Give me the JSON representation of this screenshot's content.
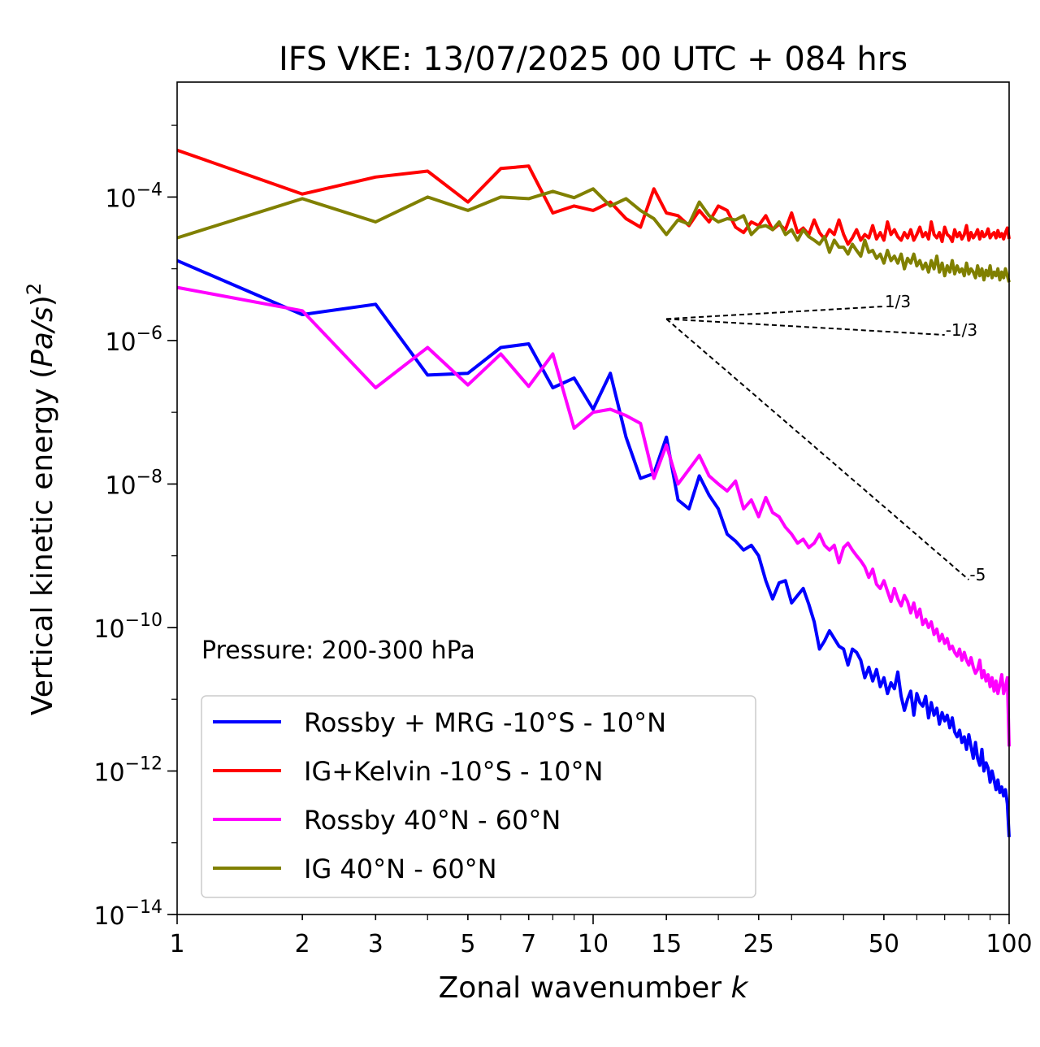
{
  "chart_data": {
    "type": "line",
    "title": "IFS VKE: 13/07/2025 00 UTC + 084 hrs",
    "xlabel": "Zonal wavenumber",
    "xlabel_var": "k",
    "ylabel_prefix": "Vertical kinetic energy (",
    "ylabel_var": "Pa/s",
    "ylabel_suffix": ")",
    "ylabel_exp": "2",
    "x_scale": "log",
    "y_scale": "log",
    "xlim": [
      1,
      100
    ],
    "ylim": [
      1e-14,
      0.004
    ],
    "x_ticks": [
      1,
      2,
      3,
      5,
      7,
      10,
      15,
      25,
      50,
      100
    ],
    "x_tick_labels": [
      "1",
      "2",
      "3",
      "5",
      "7",
      "10",
      "15",
      "25",
      "50",
      "100"
    ],
    "y_ticks": [
      0.0001,
      1e-06,
      1e-08,
      1e-10,
      1e-12,
      1e-14
    ],
    "y_tick_labels": [
      {
        "base": "10",
        "exp": "−4"
      },
      {
        "base": "10",
        "exp": "−6"
      },
      {
        "base": "10",
        "exp": "−8"
      },
      {
        "base": "10",
        "exp": "−10"
      },
      {
        "base": "10",
        "exp": "−12"
      },
      {
        "base": "10",
        "exp": "−14"
      }
    ],
    "annotation": "Pressure: 200-300 hPa",
    "legend_position": "lower-left",
    "grid": false,
    "reference_slopes": [
      {
        "label": "1/3",
        "slope": 0.3333,
        "x_start": 15,
        "x_end": 50,
        "y_start": 2e-06
      },
      {
        "label": "-1/3",
        "slope": -0.3333,
        "x_start": 15,
        "x_end": 70,
        "y_start": 2e-06
      },
      {
        "label": "-5",
        "slope": -5,
        "x_start": 15,
        "x_end": 80,
        "y_start": 2e-06
      }
    ],
    "series": [
      {
        "name": "Rossby + MRG -10°S - 10°N",
        "color": "#0000ff",
        "x": [
          1,
          2,
          3,
          4,
          5,
          6,
          7,
          8,
          9,
          10,
          11,
          12,
          13,
          14,
          15,
          16,
          17,
          18,
          19,
          20,
          21,
          22,
          23,
          24,
          25,
          26,
          27,
          28,
          29,
          30,
          31,
          32,
          33,
          34,
          35,
          36,
          37,
          38,
          39,
          40,
          41,
          42,
          43,
          44,
          45,
          46,
          47,
          48,
          49,
          50,
          51,
          52,
          53,
          54,
          55,
          56,
          57,
          58,
          59,
          60,
          61,
          62,
          63,
          64,
          65,
          66,
          67,
          68,
          69,
          70,
          71,
          72,
          73,
          74,
          75,
          76,
          77,
          78,
          79,
          80,
          81,
          82,
          83,
          84,
          85,
          86,
          87,
          88,
          89,
          90,
          91,
          92,
          93,
          94,
          95,
          96,
          97,
          98,
          99,
          100
        ],
        "y": [
          1.3e-05,
          2.3e-06,
          3.2e-06,
          3.3e-07,
          3.5e-07,
          8e-07,
          9e-07,
          2.2e-07,
          3e-07,
          1.1e-07,
          3.5e-07,
          4.5e-08,
          1.2e-08,
          1.4e-08,
          4.5e-08,
          6e-09,
          4.5e-09,
          1.3e-08,
          7e-09,
          4.5e-09,
          2e-09,
          1.6e-09,
          1.2e-09,
          1.4e-09,
          1e-09,
          4.5e-10,
          2.5e-10,
          4.2e-10,
          4.5e-10,
          2.2e-10,
          2.8e-10,
          3.5e-10,
          2.1e-10,
          1.2e-10,
          5e-11,
          6.5e-11,
          9e-11,
          7e-11,
          5.5e-11,
          5e-11,
          3e-11,
          5e-11,
          4.5e-11,
          3.5e-11,
          2e-11,
          2.8e-11,
          1.8e-11,
          2.6e-11,
          1.5e-11,
          2e-11,
          1.2e-11,
          1.7e-11,
          1.4e-11,
          2.4e-11,
          1.1e-11,
          7e-12,
          1e-11,
          1.3e-11,
          6e-12,
          1.2e-11,
          9e-12,
          8e-12,
          1.1e-11,
          5.5e-12,
          9e-12,
          6e-12,
          7.5e-12,
          4.5e-12,
          6.5e-12,
          5e-12,
          6e-12,
          4e-12,
          5.5e-12,
          3.5e-12,
          3e-12,
          3.7e-12,
          2.5e-12,
          3e-12,
          2e-12,
          3.2e-12,
          2.2e-12,
          1.5e-12,
          2.5e-12,
          1.5e-12,
          1.2e-12,
          2e-12,
          1e-12,
          1.3e-12,
          1.1e-12,
          7e-13,
          1e-12,
          7.5e-13,
          5.5e-13,
          7.5e-13,
          5e-13,
          6e-13,
          4.5e-13,
          5.5e-13,
          3.5e-13,
          1.2e-13
        ]
      },
      {
        "name": "IG+Kelvin -10°S - 10°N",
        "color": "#ff0000",
        "x": [
          1,
          2,
          3,
          4,
          5,
          6,
          7,
          8,
          9,
          10,
          11,
          12,
          13,
          14,
          15,
          16,
          17,
          18,
          19,
          20,
          21,
          22,
          23,
          24,
          25,
          26,
          27,
          28,
          29,
          30,
          31,
          32,
          33,
          34,
          35,
          36,
          37,
          38,
          39,
          40,
          41,
          42,
          43,
          44,
          45,
          46,
          47,
          48,
          49,
          50,
          51,
          52,
          53,
          54,
          55,
          56,
          57,
          58,
          59,
          60,
          61,
          62,
          63,
          64,
          65,
          66,
          67,
          68,
          69,
          70,
          71,
          72,
          73,
          74,
          75,
          76,
          77,
          78,
          79,
          80,
          81,
          82,
          83,
          84,
          85,
          86,
          87,
          88,
          89,
          90,
          91,
          92,
          93,
          94,
          95,
          96,
          97,
          98,
          99,
          100
        ],
        "y": [
          0.00045,
          0.00011,
          0.00019,
          0.00023,
          8.5e-05,
          0.00025,
          0.00027,
          6e-05,
          7.5e-05,
          6.5e-05,
          8.5e-05,
          5e-05,
          3.8e-05,
          0.00013,
          6e-05,
          5.5e-05,
          4e-05,
          6.5e-05,
          4.5e-05,
          7.5e-05,
          6.5e-05,
          3.8e-05,
          3.2e-05,
          4.5e-05,
          4e-05,
          5.5e-05,
          3.5e-05,
          4.2e-05,
          3.5e-05,
          6e-05,
          3.2e-05,
          3.7e-05,
          3e-05,
          4.8e-05,
          3.2e-05,
          2.6e-05,
          3.5e-05,
          3e-05,
          4.8e-05,
          3e-05,
          2.2e-05,
          2.7e-05,
          3.5e-05,
          2.5e-05,
          3e-05,
          2.7e-05,
          4e-05,
          2.6e-05,
          3.2e-05,
          2.5e-05,
          4.5e-05,
          3e-05,
          3.5e-05,
          2.8e-05,
          2.5e-05,
          3.2e-05,
          2.7e-05,
          3.5e-05,
          2.5e-05,
          3e-05,
          3.8e-05,
          2.8e-05,
          3.2e-05,
          2.6e-05,
          4.5e-05,
          3e-05,
          2.7e-05,
          3.2e-05,
          2.4e-05,
          3.8e-05,
          3e-05,
          2.8e-05,
          2.4e-05,
          3.5e-05,
          2.8e-05,
          3.2e-05,
          2.6e-05,
          3e-05,
          4e-05,
          2.5e-05,
          3.2e-05,
          2.7e-05,
          3e-05,
          3.5e-05,
          2.6e-05,
          3.3e-05,
          2.8e-05,
          3e-05,
          3.6e-05,
          2.7e-05,
          3e-05,
          3.2e-05,
          2.7e-05,
          3.4e-05,
          2.8e-05,
          3.1e-05,
          2.6e-05,
          3.2e-05,
          3.7e-05,
          2.6e-05
        ]
      },
      {
        "name": "Rossby 40°N - 60°N",
        "color": "#ff00ff",
        "x": [
          1,
          2,
          3,
          4,
          5,
          6,
          7,
          8,
          9,
          10,
          11,
          12,
          13,
          14,
          15,
          16,
          17,
          18,
          19,
          20,
          21,
          22,
          23,
          24,
          25,
          26,
          27,
          28,
          29,
          30,
          31,
          32,
          33,
          34,
          35,
          36,
          37,
          38,
          39,
          40,
          41,
          42,
          43,
          44,
          45,
          46,
          47,
          48,
          49,
          50,
          51,
          52,
          53,
          54,
          55,
          56,
          57,
          58,
          59,
          60,
          61,
          62,
          63,
          64,
          65,
          66,
          67,
          68,
          69,
          70,
          71,
          72,
          73,
          74,
          75,
          76,
          77,
          78,
          79,
          80,
          81,
          82,
          83,
          84,
          85,
          86,
          87,
          88,
          89,
          90,
          91,
          92,
          93,
          94,
          95,
          96,
          97,
          98,
          99,
          100
        ],
        "y": [
          5.5e-06,
          2.6e-06,
          2.2e-07,
          8e-07,
          2.4e-07,
          6.5e-07,
          2.3e-07,
          6.5e-07,
          6e-08,
          1e-07,
          1.1e-07,
          9e-08,
          7e-08,
          1.2e-08,
          3.5e-08,
          1e-08,
          1.6e-08,
          2.5e-08,
          1.3e-08,
          1e-08,
          8e-09,
          1.1e-08,
          4.5e-09,
          6e-09,
          3.5e-09,
          6.5e-09,
          4e-09,
          3.5e-09,
          2.5e-09,
          2e-09,
          1.5e-09,
          1.7e-09,
          1.3e-09,
          1.5e-09,
          2e-09,
          1.4e-09,
          1.2e-09,
          1.4e-09,
          8e-10,
          1.3e-09,
          1.5e-09,
          1.2e-09,
          1e-09,
          8.5e-10,
          7e-10,
          5e-10,
          6.5e-10,
          4e-10,
          3.5e-10,
          4.5e-10,
          3.2e-10,
          2.3e-10,
          3.5e-10,
          2.5e-10,
          2e-10,
          2.8e-10,
          2.3e-10,
          1.6e-10,
          2.2e-10,
          1.4e-10,
          1.8e-10,
          1.1e-10,
          1.3e-10,
          1e-10,
          1.2e-10,
          8e-11,
          9.5e-11,
          6.5e-11,
          8e-11,
          6e-11,
          7e-11,
          5e-11,
          5.5e-11,
          4.5e-11,
          4e-11,
          5e-11,
          3.5e-11,
          4.5e-11,
          3.5e-11,
          3e-11,
          3.8e-11,
          2.8e-11,
          2.3e-11,
          2.6e-11,
          3.5e-11,
          2e-11,
          2.5e-11,
          1.8e-11,
          2.2e-11,
          1.5e-11,
          2e-11,
          1.3e-11,
          1.8e-11,
          1.2e-11,
          1.6e-11,
          2.2e-11,
          1.2e-11,
          1.5e-11,
          2e-11,
          2.2e-12
        ]
      },
      {
        "name": "IG 40°N - 60°N",
        "color": "#808000",
        "x": [
          1,
          2,
          3,
          4,
          5,
          6,
          7,
          8,
          9,
          10,
          11,
          12,
          13,
          14,
          15,
          16,
          17,
          18,
          19,
          20,
          21,
          22,
          23,
          24,
          25,
          26,
          27,
          28,
          29,
          30,
          31,
          32,
          33,
          34,
          35,
          36,
          37,
          38,
          39,
          40,
          41,
          42,
          43,
          44,
          45,
          46,
          47,
          48,
          49,
          50,
          51,
          52,
          53,
          54,
          55,
          56,
          57,
          58,
          59,
          60,
          61,
          62,
          63,
          64,
          65,
          66,
          67,
          68,
          69,
          70,
          71,
          72,
          73,
          74,
          75,
          76,
          77,
          78,
          79,
          80,
          81,
          82,
          83,
          84,
          85,
          86,
          87,
          88,
          89,
          90,
          91,
          92,
          93,
          94,
          95,
          96,
          97,
          98,
          99,
          100
        ],
        "y": [
          2.7e-05,
          9.5e-05,
          4.5e-05,
          0.0001,
          6.5e-05,
          0.0001,
          9.5e-05,
          0.00012,
          9.8e-05,
          0.00013,
          7.5e-05,
          9.5e-05,
          6.5e-05,
          5e-05,
          3e-05,
          4.8e-05,
          4.2e-05,
          8.5e-05,
          5.5e-05,
          4.5e-05,
          5e-05,
          4.8e-05,
          5.5e-05,
          3e-05,
          3.8e-05,
          4e-05,
          3.5e-05,
          4.5e-05,
          3e-05,
          3.5e-05,
          2.5e-05,
          3.5e-05,
          2.8e-05,
          2.5e-05,
          2.2e-05,
          2.8e-05,
          1.7e-05,
          2.5e-05,
          2e-05,
          2e-05,
          1.6e-05,
          2.2e-05,
          1.8e-05,
          1.5e-05,
          2.5e-05,
          1.7e-05,
          1.8e-05,
          1.4e-05,
          1.6e-05,
          1.2e-05,
          1.8e-05,
          1.3e-05,
          1.5e-05,
          1.2e-05,
          1.6e-05,
          1e-05,
          1.4e-05,
          1.2e-05,
          1.6e-05,
          1.1e-05,
          1.3e-05,
          1e-05,
          1.2e-05,
          9e-06,
          1.3e-05,
          1e-05,
          1.5e-05,
          9e-06,
          1.2e-05,
          8e-06,
          1.1e-05,
          9e-06,
          1.3e-05,
          8.5e-06,
          1.1e-05,
          9e-06,
          1e-05,
          8e-06,
          1.2e-05,
          8.5e-06,
          1e-05,
          9e-06,
          7.5e-06,
          1.1e-05,
          8e-06,
          1e-05,
          7e-06,
          9.5e-06,
          8e-06,
          1.1e-05,
          7.5e-06,
          9e-06,
          8e-06,
          1e-05,
          7e-06,
          9e-06,
          7.5e-06,
          1e-05,
          8e-06,
          6.5e-06
        ]
      }
    ]
  }
}
